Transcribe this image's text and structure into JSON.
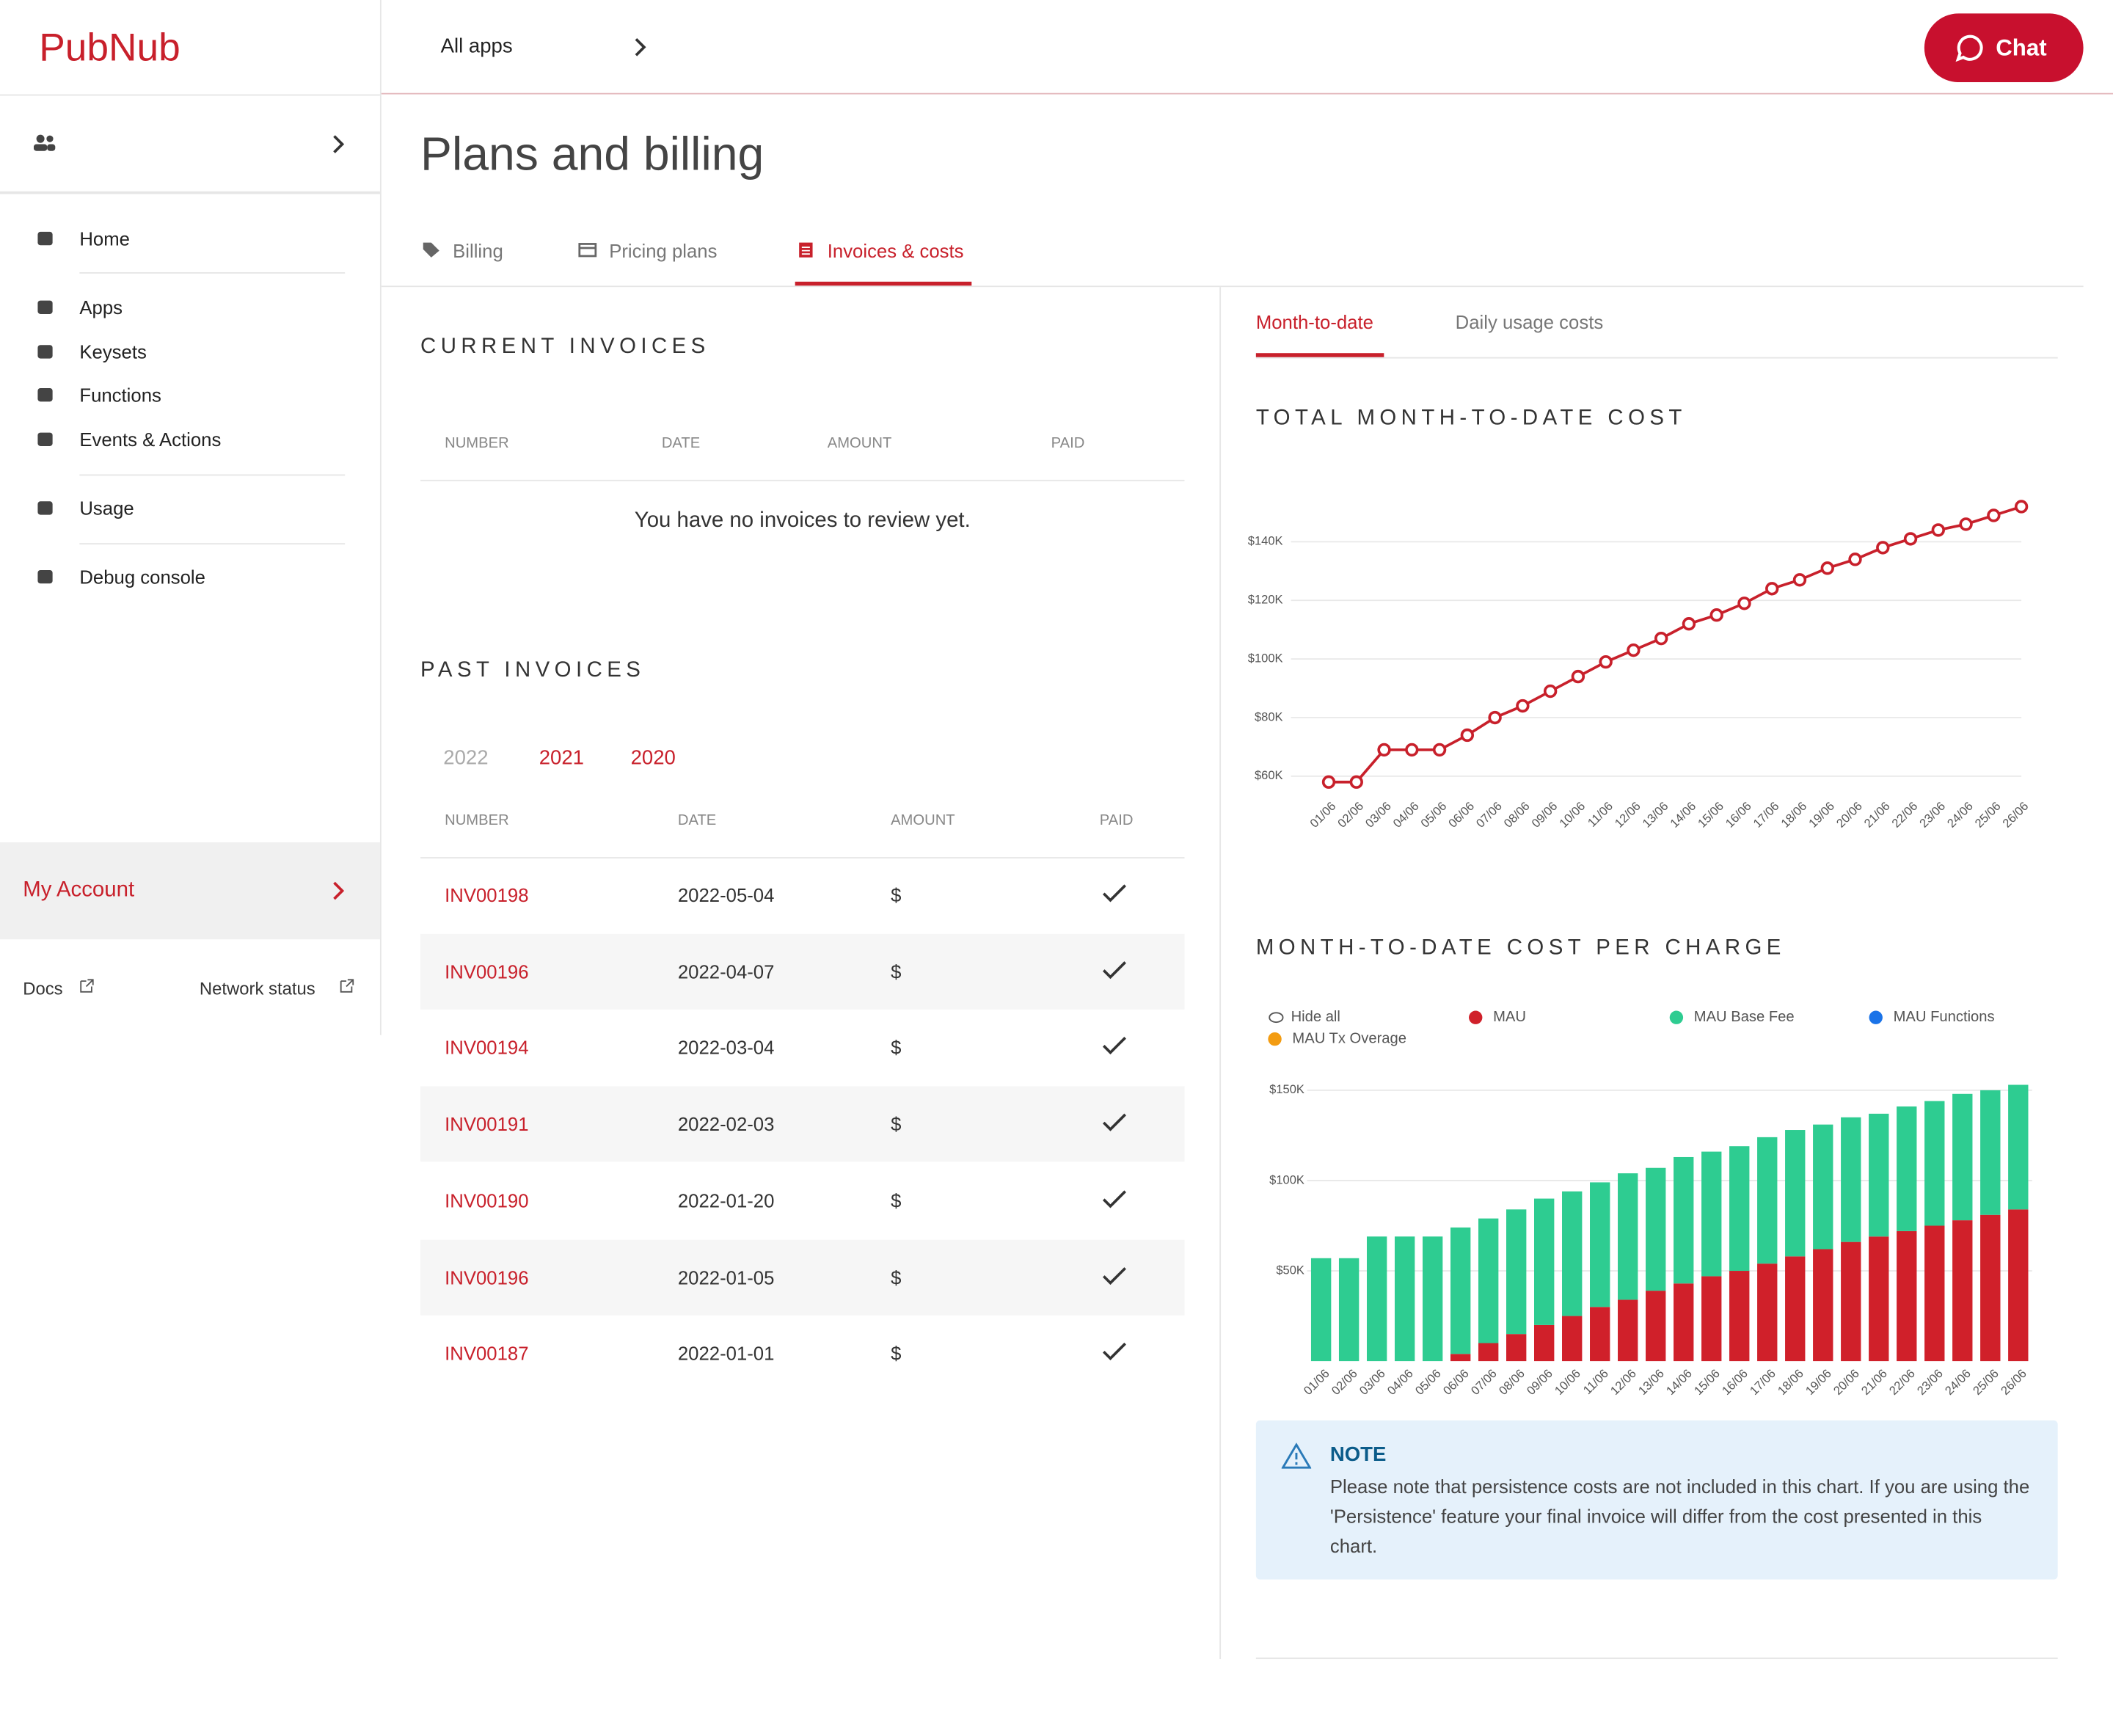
{
  "header": {
    "logo": "PubNub",
    "app_selector": "All apps",
    "chat_button": "Chat"
  },
  "sidebar": {
    "nav": [
      "Home",
      "Apps",
      "Keysets",
      "Functions",
      "Events & Actions",
      "Usage",
      "Debug console"
    ],
    "account": "My Account",
    "footer_links": [
      "Docs",
      "Network status"
    ]
  },
  "page": {
    "title": "Plans and billing",
    "tabs": [
      "Billing",
      "Pricing plans",
      "Invoices & costs"
    ]
  },
  "current_invoices": {
    "title": "CURRENT INVOICES",
    "columns": [
      "NUMBER",
      "DATE",
      "AMOUNT",
      "PAID"
    ],
    "empty_message": "You have no invoices to review yet."
  },
  "past_invoices": {
    "title": "PAST INVOICES",
    "years": [
      "2022",
      "2021",
      "2020"
    ],
    "columns": [
      "NUMBER",
      "DATE",
      "AMOUNT",
      "PAID"
    ],
    "rows": [
      [
        "INV00198",
        "2022-05-04",
        "$"
      ],
      [
        "INV00196",
        "2022-04-07",
        "$"
      ],
      [
        "INV00194",
        "2022-03-04",
        "$"
      ],
      [
        "INV00191",
        "2022-02-03",
        "$"
      ],
      [
        "INV00190",
        "2022-01-20",
        "$"
      ],
      [
        "INV00196",
        "2022-01-05",
        "$"
      ],
      [
        "INV00187",
        "2022-01-01",
        "$"
      ]
    ]
  },
  "cost_tabs": [
    "Month-to-date",
    "Daily usage costs"
  ],
  "chart_data": [
    {
      "type": "line",
      "title": "TOTAL MONTH-TO-DATE COST",
      "categories": [
        "01/06",
        "02/06",
        "03/06",
        "04/06",
        "05/06",
        "06/06",
        "07/06",
        "08/06",
        "09/06",
        "10/06",
        "11/06",
        "12/06",
        "13/06",
        "14/06",
        "15/06",
        "16/06",
        "17/06",
        "18/06",
        "19/06",
        "20/06",
        "21/06",
        "22/06",
        "23/06",
        "24/06",
        "25/06",
        "26/06"
      ],
      "values": [
        58000,
        58000,
        69000,
        69000,
        69000,
        74000,
        80000,
        84000,
        89000,
        94000,
        99000,
        103000,
        107000,
        112000,
        115000,
        119000,
        124000,
        127000,
        131000,
        134000,
        138000,
        141000,
        144000,
        146000,
        149000,
        152000
      ],
      "color": "#c8202b",
      "ylim": [
        54000,
        155000
      ],
      "yticks": [
        {
          "value": 60000,
          "label": "$60K"
        },
        {
          "value": 80000,
          "label": "$80K"
        },
        {
          "value": 100000,
          "label": "$100K"
        },
        {
          "value": 120000,
          "label": "$120K"
        },
        {
          "value": 140000,
          "label": "$140K"
        }
      ],
      "grid": true
    },
    {
      "type": "bar",
      "stacked": true,
      "title": "MONTH-TO-DATE COST PER CHARGE",
      "hide_all": "Hide all",
      "categories": [
        "01/06",
        "02/06",
        "03/06",
        "04/06",
        "05/06",
        "06/06",
        "07/06",
        "08/06",
        "09/06",
        "10/06",
        "11/06",
        "12/06",
        "13/06",
        "14/06",
        "15/06",
        "16/06",
        "17/06",
        "18/06",
        "19/06",
        "20/06",
        "21/06",
        "22/06",
        "23/06",
        "24/06",
        "25/06",
        "26/06"
      ],
      "series": [
        {
          "name": "MAU",
          "color": "#d0202a",
          "values": [
            0,
            0,
            0,
            0,
            0,
            4000,
            10000,
            15000,
            20000,
            25000,
            30000,
            34000,
            39000,
            43000,
            47000,
            50000,
            54000,
            58000,
            62000,
            66000,
            69000,
            72000,
            75000,
            78000,
            81000,
            84000
          ]
        },
        {
          "name": "MAU Base Fee",
          "color": "#2ecc91",
          "values": [
            57000,
            57000,
            69000,
            69000,
            69000,
            70000,
            69000,
            69000,
            70000,
            69000,
            69000,
            70000,
            68000,
            70000,
            69000,
            69000,
            70000,
            70000,
            69000,
            69000,
            68000,
            69000,
            69000,
            70000,
            69000,
            69000
          ]
        },
        {
          "name": "MAU Functions",
          "color": "#1a73e8",
          "values": [
            0,
            0,
            0,
            0,
            0,
            0,
            0,
            0,
            0,
            0,
            0,
            0,
            0,
            0,
            0,
            0,
            0,
            0,
            0,
            0,
            0,
            0,
            0,
            0,
            0,
            0
          ]
        },
        {
          "name": "MAU Tx Overage",
          "color": "#f39c12",
          "values": [
            0,
            0,
            0,
            0,
            0,
            0,
            0,
            0,
            0,
            0,
            0,
            0,
            0,
            0,
            0,
            0,
            0,
            0,
            0,
            0,
            0,
            0,
            0,
            0,
            0,
            0
          ]
        }
      ],
      "ylim": [
        0,
        157000
      ],
      "yticks": [
        {
          "value": 50000,
          "label": "$50K"
        },
        {
          "value": 100000,
          "label": "$100K"
        },
        {
          "value": 150000,
          "label": "$150K"
        }
      ],
      "grid": true
    }
  ],
  "note": {
    "title": "NOTE",
    "text": "Please note that persistence costs are not included in this chart. If you are using the 'Persistence' feature your final invoice will differ from the cost presented in this chart."
  }
}
